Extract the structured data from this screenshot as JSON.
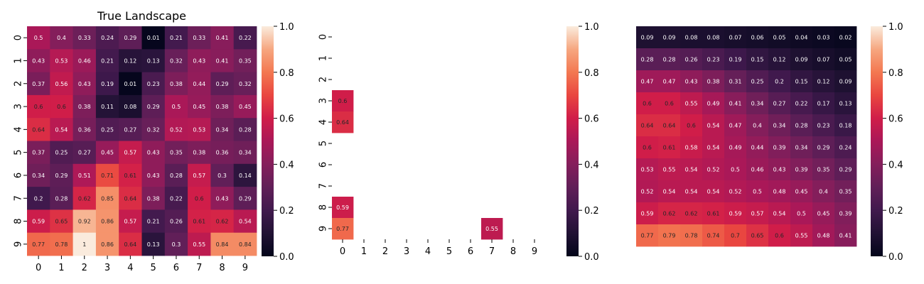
{
  "chart_data": [
    {
      "type": "heatmap",
      "title": "True Landscape",
      "xticks": [
        "0",
        "1",
        "2",
        "3",
        "4",
        "5",
        "6",
        "7",
        "8",
        "9"
      ],
      "yticks": [
        "0",
        "1",
        "2",
        "3",
        "4",
        "5",
        "6",
        "7",
        "8",
        "9"
      ],
      "annotate": true,
      "values": [
        [
          0.5,
          0.4,
          0.33,
          0.24,
          0.29,
          0.01,
          0.21,
          0.33,
          0.41,
          0.22
        ],
        [
          0.43,
          0.53,
          0.46,
          0.21,
          0.12,
          0.13,
          0.32,
          0.43,
          0.41,
          0.35
        ],
        [
          0.37,
          0.56,
          0.43,
          0.19,
          0.01,
          0.23,
          0.38,
          0.44,
          0.29,
          0.32
        ],
        [
          0.6,
          0.6,
          0.38,
          0.11,
          0.08,
          0.29,
          0.5,
          0.45,
          0.38,
          0.45
        ],
        [
          0.64,
          0.54,
          0.36,
          0.25,
          0.27,
          0.32,
          0.52,
          0.53,
          0.34,
          0.28
        ],
        [
          0.37,
          0.25,
          0.27,
          0.45,
          0.57,
          0.43,
          0.35,
          0.38,
          0.36,
          0.34
        ],
        [
          0.34,
          0.29,
          0.51,
          0.71,
          0.61,
          0.43,
          0.28,
          0.57,
          0.3,
          0.14
        ],
        [
          0.2,
          0.28,
          0.62,
          0.85,
          0.64,
          0.38,
          0.22,
          0.6,
          0.43,
          0.29
        ],
        [
          0.59,
          0.65,
          0.92,
          0.86,
          0.57,
          0.21,
          0.26,
          0.61,
          0.62,
          0.54
        ],
        [
          0.77,
          0.78,
          1,
          0.86,
          0.64,
          0.13,
          0.3,
          0.55,
          0.84,
          0.84
        ]
      ],
      "colorbar": {
        "vmin": 0.0,
        "vmax": 1.0,
        "ticks": [
          "0.0",
          "0.2",
          "0.4",
          "0.6",
          "0.8",
          "1.0"
        ]
      },
      "colormap": "rocket"
    },
    {
      "type": "heatmap",
      "title": "",
      "xticks": [
        "0",
        "1",
        "2",
        "3",
        "4",
        "5",
        "6",
        "7",
        "8",
        "9"
      ],
      "yticks": [
        "0",
        "1",
        "2",
        "3",
        "4",
        "5",
        "6",
        "7",
        "8",
        "9"
      ],
      "annotate": true,
      "values": [
        [
          null,
          null,
          null,
          null,
          null,
          null,
          null,
          null,
          null,
          null
        ],
        [
          null,
          null,
          null,
          null,
          null,
          null,
          null,
          null,
          null,
          null
        ],
        [
          null,
          null,
          null,
          null,
          null,
          null,
          null,
          null,
          null,
          null
        ],
        [
          0.6,
          null,
          null,
          null,
          null,
          null,
          null,
          null,
          null,
          null
        ],
        [
          0.64,
          null,
          null,
          null,
          null,
          null,
          null,
          null,
          null,
          null
        ],
        [
          null,
          null,
          null,
          null,
          null,
          null,
          null,
          null,
          null,
          null
        ],
        [
          null,
          null,
          null,
          null,
          null,
          null,
          null,
          null,
          null,
          null
        ],
        [
          null,
          null,
          null,
          null,
          null,
          null,
          null,
          null,
          null,
          null
        ],
        [
          0.59,
          null,
          null,
          null,
          null,
          null,
          null,
          null,
          null,
          null
        ],
        [
          0.77,
          null,
          null,
          null,
          null,
          null,
          null,
          0.55,
          null,
          null
        ]
      ],
      "colorbar": {
        "vmin": 0.0,
        "vmax": 1.0,
        "ticks": [
          "0.0",
          "0.2",
          "0.4",
          "0.6",
          "0.8",
          "1.0"
        ]
      },
      "colormap": "rocket"
    },
    {
      "type": "heatmap",
      "title": "",
      "xticks": [],
      "yticks": [],
      "annotate": true,
      "values": [
        [
          0.09,
          0.09,
          0.08,
          0.08,
          0.07,
          0.06,
          0.05,
          0.04,
          0.03,
          0.02
        ],
        [
          0.28,
          0.28,
          0.26,
          0.23,
          0.19,
          0.15,
          0.12,
          0.09,
          0.07,
          0.05
        ],
        [
          0.47,
          0.47,
          0.43,
          0.38,
          0.31,
          0.25,
          0.2,
          0.15,
          0.12,
          0.09
        ],
        [
          0.6,
          0.6,
          0.55,
          0.49,
          0.41,
          0.34,
          0.27,
          0.22,
          0.17,
          0.13
        ],
        [
          0.64,
          0.64,
          0.6,
          0.54,
          0.47,
          0.4,
          0.34,
          0.28,
          0.23,
          0.18
        ],
        [
          0.6,
          0.61,
          0.58,
          0.54,
          0.49,
          0.44,
          0.39,
          0.34,
          0.29,
          0.24
        ],
        [
          0.53,
          0.55,
          0.54,
          0.52,
          0.5,
          0.46,
          0.43,
          0.39,
          0.35,
          0.29
        ],
        [
          0.52,
          0.54,
          0.54,
          0.54,
          0.52,
          0.5,
          0.48,
          0.45,
          0.4,
          0.35
        ],
        [
          0.59,
          0.62,
          0.62,
          0.61,
          0.59,
          0.57,
          0.54,
          0.5,
          0.45,
          0.39
        ],
        [
          0.77,
          0.79,
          0.78,
          0.74,
          0.7,
          0.65,
          0.6,
          0.55,
          0.48,
          0.41
        ]
      ],
      "colorbar": {
        "vmin": 0.0,
        "vmax": 1.0,
        "ticks": [
          "0.0",
          "0.2",
          "0.4",
          "0.6",
          "0.8",
          "1.0"
        ]
      },
      "colormap": "rocket"
    }
  ]
}
